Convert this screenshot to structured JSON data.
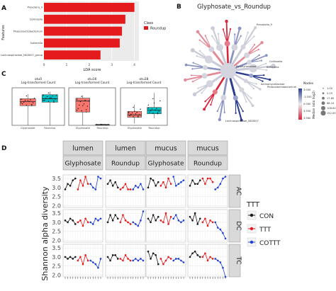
{
  "panels": {
    "A": {
      "label": "A",
      "chart_data": {
        "type": "bar",
        "orientation": "horizontal",
        "categories": [
          "Prevotella_9",
          "Collinsella",
          "Phascolarctobacterium",
          "Sutterella",
          "Lachnospiraceae_ND3007_group"
        ],
        "tick_labels": [
          "Prevotera_9",
          "Collinsella",
          "Phascolarctobacterium",
          "Sutterella",
          "Lachnospiraceae_ND3007_group"
        ],
        "values": [
          4.0,
          3.6,
          3.45,
          3.35,
          2.5
        ],
        "xlim": [
          0,
          4.2
        ],
        "xticks": [
          "0",
          "1",
          "2",
          "3",
          "4"
        ],
        "xlabel": "LDA score",
        "ylabel": "Features",
        "legend": {
          "title": "Class",
          "entries": [
            "Roundup"
          ],
          "placement": "right"
        },
        "colors": {
          "Roundup": "#e41a1c"
        }
      }
    },
    "B": {
      "label": "B",
      "title": "Glyphosate_vs_Roundup",
      "node_labels": [
        "Prevotella_9",
        "Collinsella",
        "Sutterella",
        "Phascolarctobacterium",
        "Actinomycetaceae",
        "Lachnospiraceae_ND3007",
        "Porphyromonad"
      ],
      "legend": {
        "size_title": "Nodes",
        "size_values": [
          "1.00",
          "5.19",
          "17.80",
          "68.10",
          "108.00",
          "152.00"
        ],
        "color_title": "Median ratio (log2)",
        "color_values": [
          "3.000",
          "-3.550",
          "0.000",
          "3.550",
          "3.560"
        ],
        "colors": {
          "low": "#2b3d8f",
          "mid": "#ececf0",
          "high": "#d7263d"
        }
      }
    },
    "C": {
      "label": "C",
      "chart_data": [
        {
          "type": "boxplot",
          "title": "otu0",
          "ylabel": "Log-transformed Count",
          "categories": [
            "Glyphosate",
            "Roundup"
          ],
          "boxes": [
            {
              "q1": 3.4,
              "median": 4.1,
              "q3": 4.6,
              "min": 0.0,
              "max": 5.4
            },
            {
              "q1": 4.0,
              "median": 4.6,
              "q3": 5.3,
              "min": 0.0,
              "max": 5.8
            }
          ],
          "ylim": [
            0,
            6
          ]
        },
        {
          "type": "boxplot",
          "title": "otu16",
          "ylabel": "Log-transformed Count",
          "categories": [
            "Glyphosate",
            "Roundup"
          ],
          "boxes": [
            {
              "q1": 2.3,
              "median": 4.2,
              "q3": 4.7,
              "min": 0.0,
              "max": 5.2
            },
            {
              "q1": 0.05,
              "median": 0.1,
              "q3": 0.15,
              "min": 0.0,
              "max": 0.2
            }
          ],
          "ylim": [
            0,
            6
          ]
        },
        {
          "type": "boxplot",
          "title": "otu38",
          "ylabel": "Log-transformed Count",
          "categories": [
            "Glyphosate",
            "Roundup"
          ],
          "boxes": [
            {
              "q1": 1.4,
              "median": 1.8,
              "q3": 2.4,
              "min": 0.3,
              "max": 3.6
            },
            {
              "q1": 2.0,
              "median": 2.6,
              "q3": 3.1,
              "min": 1.2,
              "max": 5.6
            }
          ],
          "ylim": [
            0,
            6
          ]
        }
      ],
      "colors": {
        "Glyphosate": "#f8766d",
        "Roundup": "#00bfc4"
      }
    },
    "D": {
      "label": "D",
      "chart_data": {
        "type": "line",
        "ylabel": "Shannon alpha diversity",
        "ylim": [
          1.9,
          3.7
        ],
        "yticks": [
          "2.0",
          "2.5",
          "3.0",
          "3.5"
        ],
        "col_strip_top": [
          "lumen",
          "lumen",
          "mucus",
          "mucus"
        ],
        "col_strip_bottom": [
          "Glyphosate",
          "Roundup",
          "Glyphosate",
          "Roundup"
        ],
        "rows": [
          "AC",
          "DC",
          "TC"
        ],
        "legend": {
          "title": "TTT",
          "entries": [
            "CON",
            "TTT",
            "COTTT"
          ],
          "placement": "right"
        },
        "colors": {
          "CON": "#1a1a1a",
          "TTT": "#e41a1c",
          "COTTT": "#1f3fd6"
        },
        "series_order": [
          "CON",
          "TTT",
          "COTTT"
        ],
        "panels": [
          [
            {
              "CON": [
                2.9,
                3.2,
                3.1,
                3.4,
                3.5
              ],
              "TTT": [
                2.9,
                3.4,
                3.1,
                3.6,
                3.2
              ],
              "COTTT": [
                3.2,
                3.0,
                2.9,
                3.6,
                3.5
              ]
            },
            {
              "CON": [
                3.2,
                3.4,
                3.1,
                3.3,
                3.0
              ],
              "TTT": [
                2.9,
                3.0,
                3.2,
                2.9,
                2.9
              ],
              "COTTT": [
                2.9,
                3.1,
                3.0,
                3.2,
                2.9
              ]
            },
            {
              "CON": [
                3.0,
                3.5,
                3.4,
                3.1,
                3.3
              ],
              "TTT": [
                3.1,
                3.3,
                3.0,
                3.5,
                3.2
              ],
              "COTTT": [
                3.6,
                3.1,
                3.2,
                3.3,
                3.4
              ]
            },
            {
              "CON": [
                3.1,
                3.4,
                3.2,
                3.2,
                3.4
              ],
              "TTT": [
                3.5,
                3.2,
                3.5,
                3.5,
                3.3
              ],
              "COTTT": [
                2.9,
                3.0,
                3.2,
                3.5,
                3.6
              ]
            }
          ],
          [
            {
              "CON": [
                3.1,
                3.0,
                3.2,
                3.1,
                2.9
              ],
              "TTT": [
                3.0,
                3.1,
                2.8,
                3.2,
                3.0
              ],
              "COTTT": [
                3.0,
                2.9,
                3.2,
                3.1,
                3.2
              ]
            },
            {
              "CON": [
                3.0,
                3.4,
                3.1,
                3.4,
                3.2
              ],
              "TTT": [
                3.0,
                3.4,
                3.1,
                3.0,
                2.9
              ],
              "COTTT": [
                3.0,
                2.9,
                2.8,
                3.1,
                3.6
              ]
            },
            {
              "CON": [
                3.2,
                3.0,
                3.4,
                3.1,
                3.3
              ],
              "TTT": [
                3.1,
                3.0,
                3.5,
                2.9,
                3.3
              ],
              "COTTT": [
                3.2,
                3.4,
                3.1,
                3.0,
                3.1
              ]
            },
            {
              "CON": [
                3.3,
                3.1,
                3.5,
                2.9,
                3.2
              ],
              "TTT": [
                3.0,
                3.2,
                2.8,
                3.1,
                3.0
              ],
              "COTTT": [
                3.0,
                2.7,
                2.6,
                2.4,
                2.1
              ]
            }
          ],
          [
            {
              "CON": [
                3.0,
                2.9,
                3.0,
                2.9,
                3.0
              ],
              "TTT": [
                2.8,
                3.0,
                2.6,
                3.1,
                2.8
              ],
              "COTTT": [
                2.8,
                2.7,
                2.6,
                2.4,
                2.9
              ]
            },
            {
              "CON": [
                3.0,
                2.8,
                3.1,
                3.1,
                2.9
              ],
              "TTT": [
                2.9,
                2.8,
                3.1,
                2.9,
                2.8
              ],
              "COTTT": [
                2.8,
                2.9,
                2.8,
                2.9,
                2.8
              ]
            },
            {
              "CON": [
                3.3,
                2.9,
                3.2,
                3.1,
                2.6
              ],
              "TTT": [
                2.9,
                2.6,
                2.8,
                3.0,
                2.9
              ],
              "COTTT": [
                2.8,
                2.9,
                2.9,
                2.8,
                2.7
              ]
            },
            {
              "CON": [
                3.0,
                3.2,
                3.3,
                3.1,
                3.0
              ],
              "TTT": [
                3.0,
                3.2,
                2.8,
                3.0,
                2.9
              ],
              "COTTT": [
                2.9,
                2.8,
                2.7,
                2.4,
                1.9
              ]
            }
          ]
        ]
      }
    }
  }
}
